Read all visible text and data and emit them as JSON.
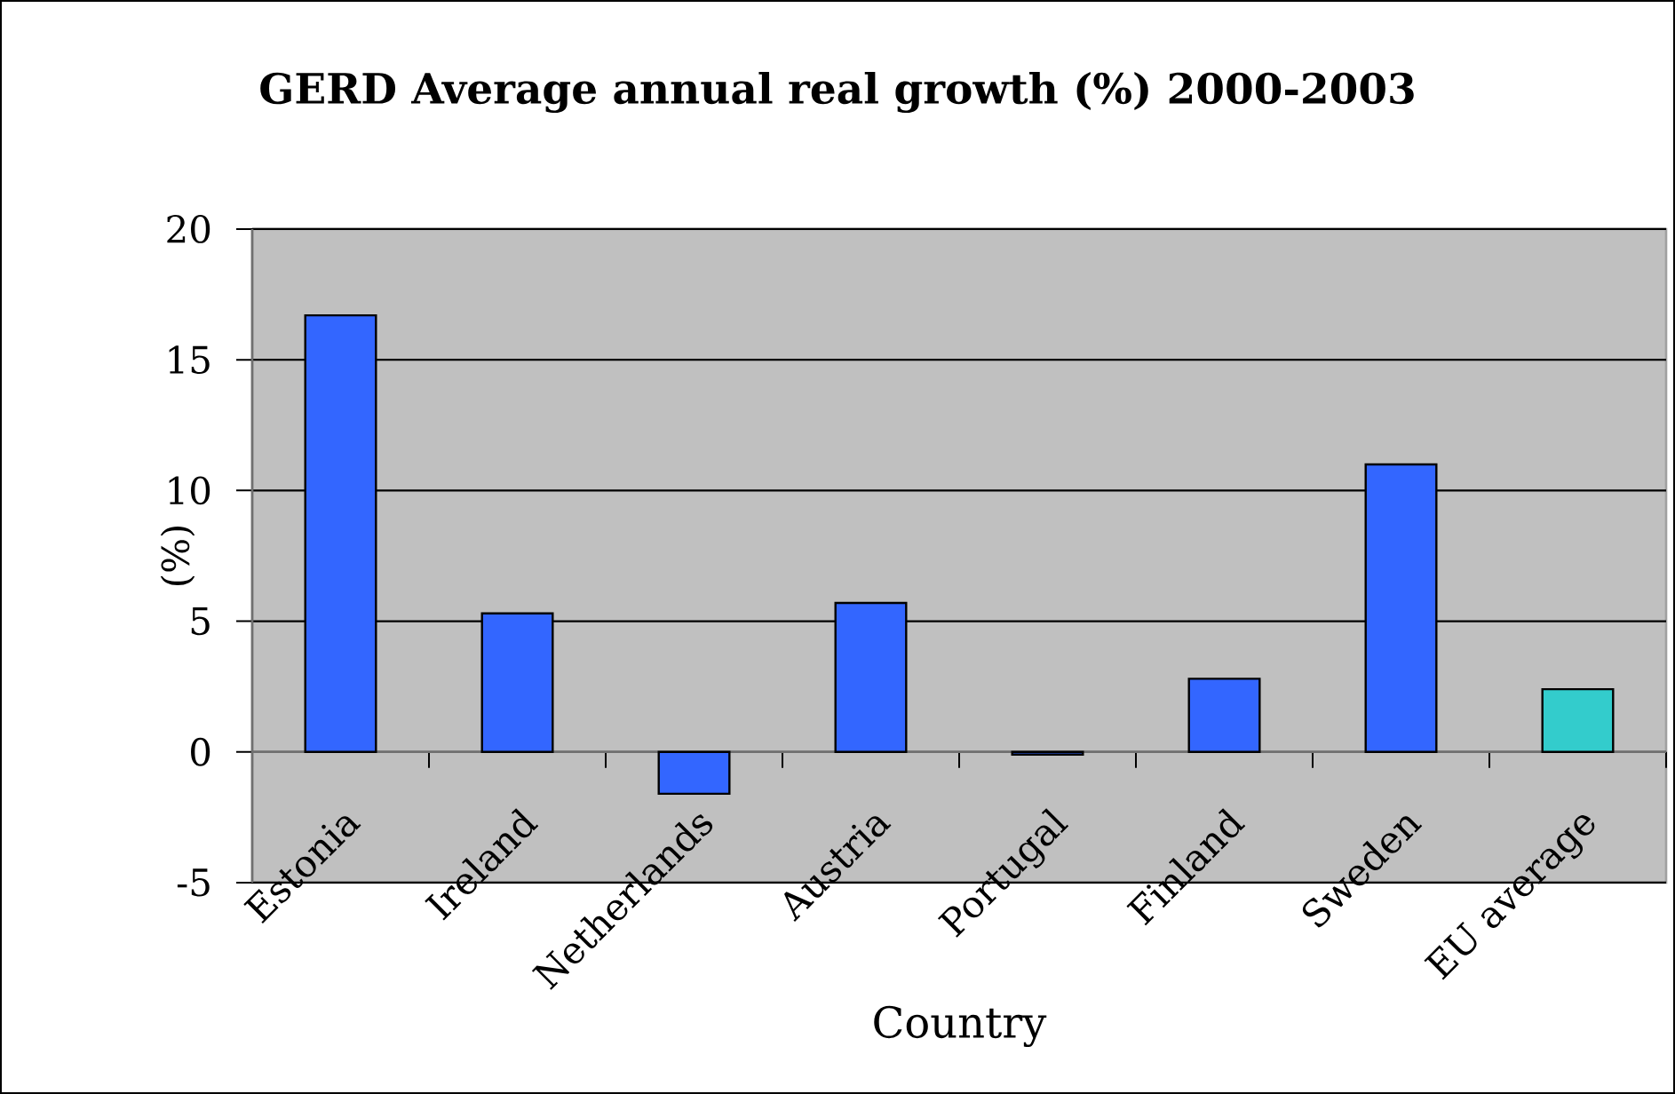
{
  "chart_data": {
    "type": "bar",
    "title": "GERD Average annual real growth (%) 2000-2003",
    "xlabel": "Country",
    "ylabel": "(%)",
    "categories": [
      "Estonia",
      "Ireland",
      "Netherlands",
      "Austria",
      "Portugal",
      "Finland",
      "Sweden",
      "EU average"
    ],
    "values": [
      16.7,
      5.3,
      -1.6,
      5.7,
      -0.1,
      2.8,
      11.0,
      2.4
    ],
    "colors": [
      "#3366ff",
      "#3366ff",
      "#3366ff",
      "#3366ff",
      "#3366ff",
      "#3366ff",
      "#3366ff",
      "#33cccc"
    ],
    "ylim": [
      -5,
      20
    ],
    "yticks": [
      -5,
      0,
      5,
      10,
      15,
      20
    ],
    "grid": "y"
  }
}
